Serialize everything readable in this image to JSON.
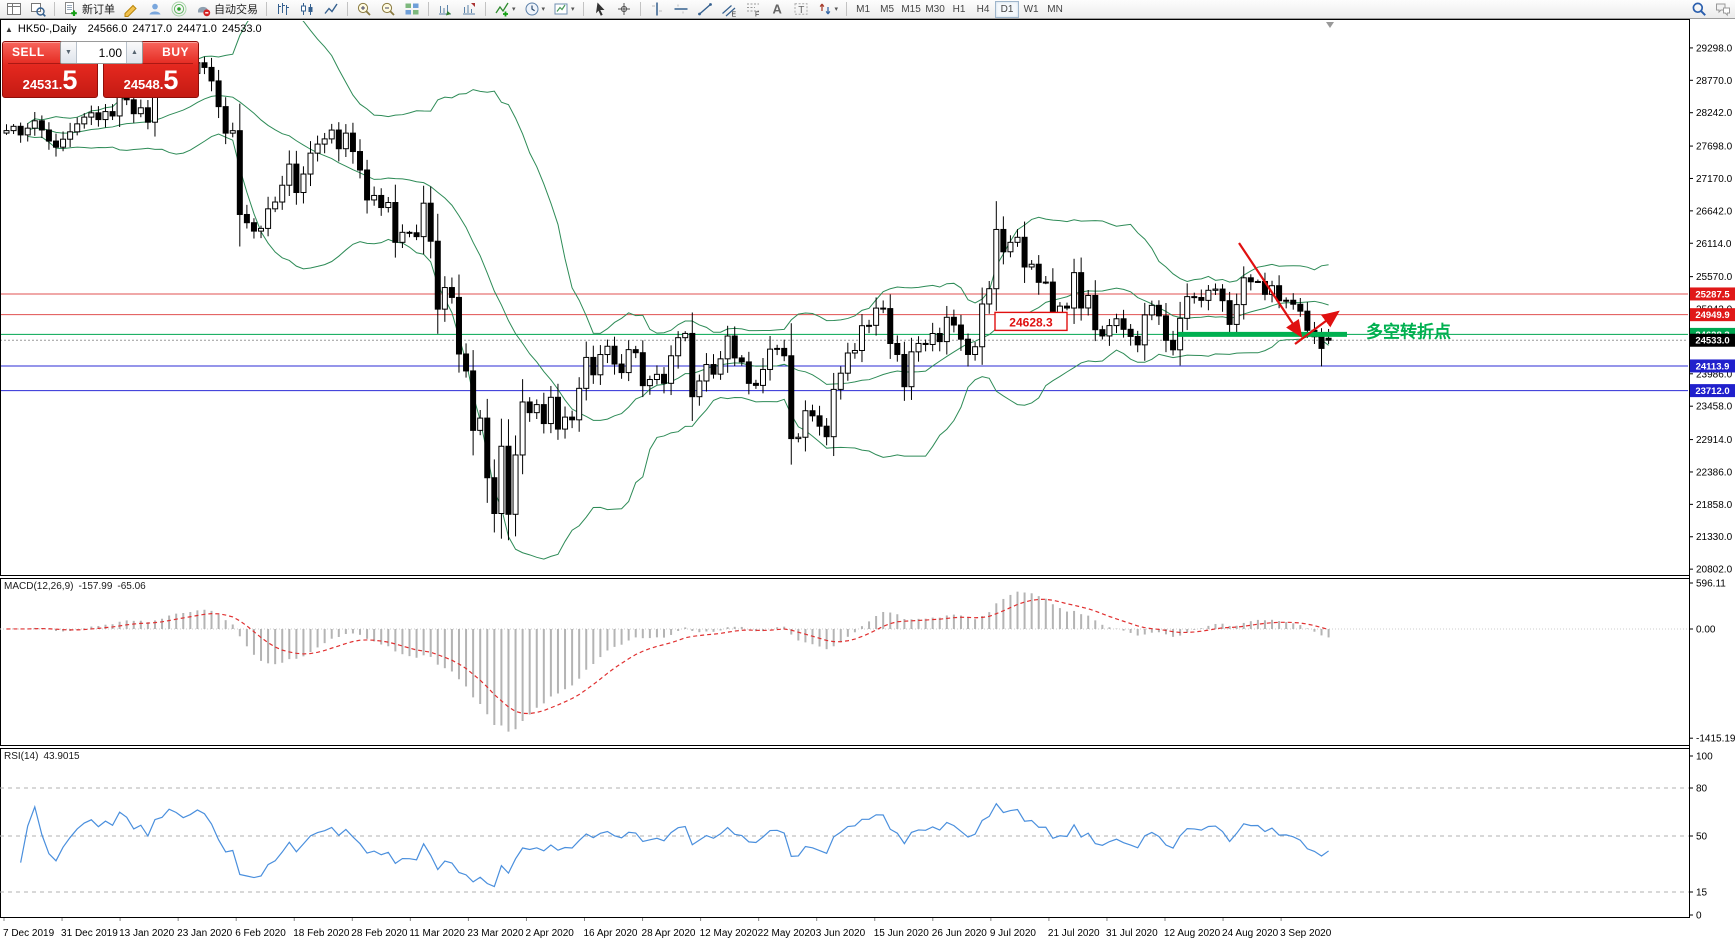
{
  "toolbar": {
    "active_timeframe": "D1",
    "items": [
      {
        "name": "new-chart",
        "type": "icon"
      },
      {
        "name": "chart-profiles",
        "type": "icon"
      },
      {
        "type": "sep"
      },
      {
        "name": "new-order",
        "type": "button",
        "label": "新订单"
      },
      {
        "name": "metaeditor",
        "type": "icon"
      },
      {
        "name": "community",
        "type": "icon"
      },
      {
        "name": "signals",
        "type": "icon"
      },
      {
        "name": "autotrading",
        "type": "button",
        "label": "自动交易"
      },
      {
        "type": "sep"
      },
      {
        "name": "bar-chart",
        "type": "icon"
      },
      {
        "name": "candlestick-chart",
        "type": "icon"
      },
      {
        "name": "line-chart",
        "type": "icon"
      },
      {
        "type": "sep"
      },
      {
        "name": "zoom-in",
        "type": "icon"
      },
      {
        "name": "zoom-out",
        "type": "icon"
      },
      {
        "name": "tile-windows",
        "type": "icon"
      },
      {
        "type": "sep"
      },
      {
        "name": "auto-scroll",
        "type": "icon"
      },
      {
        "name": "chart-shift",
        "type": "icon"
      },
      {
        "type": "sep"
      },
      {
        "name": "indicators",
        "type": "icon",
        "dropdown": true
      },
      {
        "name": "periods",
        "type": "icon",
        "dropdown": true
      },
      {
        "name": "templates",
        "type": "icon",
        "dropdown": true
      },
      {
        "type": "sep"
      },
      {
        "name": "cursor",
        "type": "icon"
      },
      {
        "name": "crosshair",
        "type": "icon"
      },
      {
        "type": "sep"
      },
      {
        "name": "vertical-line",
        "type": "icon"
      },
      {
        "name": "horizontal-line",
        "type": "icon"
      },
      {
        "name": "trendline",
        "type": "icon"
      },
      {
        "name": "equidistant-channel",
        "type": "icon"
      },
      {
        "name": "fibonacci",
        "type": "icon"
      },
      {
        "name": "text",
        "type": "icon"
      },
      {
        "name": "text-label",
        "type": "icon"
      },
      {
        "name": "arrows",
        "type": "icon",
        "dropdown": true
      },
      {
        "type": "sep"
      },
      {
        "name": "tf-m1",
        "type": "tf",
        "label": "M1"
      },
      {
        "name": "tf-m5",
        "type": "tf",
        "label": "M5"
      },
      {
        "name": "tf-m15",
        "type": "tf",
        "label": "M15"
      },
      {
        "name": "tf-m30",
        "type": "tf",
        "label": "M30"
      },
      {
        "name": "tf-h1",
        "type": "tf",
        "label": "H1"
      },
      {
        "name": "tf-h4",
        "type": "tf",
        "label": "H4"
      },
      {
        "name": "tf-d1",
        "type": "tf",
        "label": "D1"
      },
      {
        "name": "tf-w1",
        "type": "tf",
        "label": "W1"
      },
      {
        "name": "tf-mn",
        "type": "tf",
        "label": "MN"
      },
      {
        "type": "spacer"
      },
      {
        "name": "search",
        "type": "icon"
      },
      {
        "name": "chat",
        "type": "icon"
      }
    ]
  },
  "chart_header": {
    "collapse_marker": "▲",
    "symbol": "HK50-,Daily",
    "open": "24566.0",
    "high": "24717.0",
    "low": "24471.0",
    "close": "24533.0"
  },
  "one_click": {
    "sell_label": "SELL",
    "buy_label": "BUY",
    "volume": "1.00",
    "sell_price_small": "24531.",
    "sell_price_big": "5",
    "buy_price_small": "24548.",
    "buy_price_big": "5"
  },
  "price_axis": {
    "ticks": [
      "29298.0",
      "28770.0",
      "28242.0",
      "27698.0",
      "27170.0",
      "26642.0",
      "26114.0",
      "25570.0",
      "25042.0",
      "24514.0",
      "23986.0",
      "23458.0",
      "22914.0",
      "22386.0",
      "21858.0",
      "21330.0",
      "20802.0"
    ]
  },
  "lines": [
    {
      "price": 25287.5,
      "label": "25287.5",
      "line_color": "#e05050",
      "badge_color": "#e01818",
      "style": "solid"
    },
    {
      "price": 24949.9,
      "label": "24949.9",
      "line_color": "#e05050",
      "badge_color": "#e01818",
      "style": "solid"
    },
    {
      "price": 24628.3,
      "label": "24628.3",
      "line_color": "#00a650",
      "badge_color": "#00a650",
      "style": "solid"
    },
    {
      "price": 24533.0,
      "label": "24533.0",
      "line_color": "#9a9a9a",
      "badge_color": "#000000",
      "style": "dot"
    },
    {
      "price": 24113.9,
      "label": "24113.9",
      "line_color": "#2b2bd6",
      "badge_color": "#2020cc",
      "style": "solid"
    },
    {
      "price": 23712.0,
      "label": "23712.0",
      "line_color": "#2b2bd6",
      "badge_color": "#2020cc",
      "style": "solid"
    }
  ],
  "annotations": {
    "price_label": "24628.3",
    "pivot_label": "多空转折点",
    "pivot_color": "#00b050",
    "arrow_color": "#e01010"
  },
  "macd": {
    "label": "MACD(12,26,9)",
    "value_main": "-157.99",
    "value_signal": "-65.06",
    "axis": [
      {
        "text": "596.11",
        "value": 596.11
      },
      {
        "text": "0.00",
        "value": 0
      },
      {
        "text": "-1415.19",
        "value": -1415.19
      }
    ]
  },
  "rsi": {
    "label": "RSI(14)",
    "value": "43.9015",
    "axis": [
      {
        "text": "100",
        "value": 100,
        "line": false
      },
      {
        "text": "80",
        "value": 80,
        "line": true
      },
      {
        "text": "50",
        "value": 50,
        "line": true
      },
      {
        "text": "15",
        "value": 15,
        "line": true
      },
      {
        "text": "0",
        "value": 0,
        "line": false
      }
    ]
  },
  "date_axis": [
    "7 Dec 2019",
    "31 Dec 2019",
    "13 Jan 2020",
    "23 Jan 2020",
    "6 Feb 2020",
    "18 Feb 2020",
    "28 Feb 2020",
    "11 Mar 2020",
    "23 Mar 2020",
    "2 Apr 2020",
    "16 Apr 2020",
    "28 Apr 2020",
    "12 May 2020",
    "22 May 2020",
    "3 Jun 2020",
    "15 Jun 2020",
    "26 Jun 2020",
    "9 Jul 2020",
    "21 Jul 2020",
    "31 Jul 2020",
    "12 Aug 2020",
    "24 Aug 2020",
    "3 Sep 2020"
  ],
  "colors": {
    "bull_candle": "#ffffff",
    "bear_candle": "#000000",
    "candle_outline": "#000000",
    "bollinger": "#2E8B57",
    "macd_histogram": "#b4b4b4",
    "macd_signal": "#e03030",
    "rsi_line": "#4a8fdd",
    "level_dash": "#b0b0b0",
    "buy_sell_button": "#e02a22"
  },
  "chart_data": {
    "type": "candlestick",
    "symbol": "HK50",
    "period": "Daily",
    "visible_price_range": [
      20675,
      29753
    ],
    "last_candle": {
      "open": 24566.0,
      "high": 24717.0,
      "low": 24471.0,
      "close": 24533.0
    },
    "overlays": {
      "bollinger_bands": {
        "period": 20,
        "deviations": 2
      }
    },
    "macd_params": [
      12,
      26,
      9
    ],
    "rsi_params": 14,
    "closes": [
      27950,
      28020,
      27880,
      27990,
      28110,
      27960,
      27780,
      27680,
      27810,
      27930,
      28060,
      28170,
      28240,
      28130,
      28260,
      28189,
      28543,
      28452,
      28226,
      28322,
      28087,
      28561,
      28638,
      28954,
      28885,
      28773,
      28883,
      29056,
      28980,
      28760,
      28341,
      27909,
      27949,
      26583,
      26449,
      26312,
      26356,
      26675,
      26786,
      27060,
      27404,
      26941,
      27242,
      27583,
      27730,
      27815,
      27959,
      27655,
      27909,
      27609,
      27308,
      26820,
      26893,
      26696,
      26778,
      26129,
      26292,
      26285,
      26222,
      26767,
      26147,
      25040,
      25392,
      25231,
      24309,
      24033,
      23064,
      23264,
      22292,
      21709,
      22805,
      21696,
      22663,
      23527,
      23353,
      23484,
      23175,
      23603,
      23085,
      23280,
      23236,
      23749,
      24253,
      23970,
      24300,
      24435,
      24145,
      24006,
      24380,
      24330,
      23793,
      23893,
      23977,
      23831,
      24280,
      24575,
      24644,
      23613,
      23869,
      24137,
      23980,
      24230,
      24602,
      24245,
      24180,
      23830,
      23797,
      24057,
      24388,
      24400,
      24280,
      22930,
      22952,
      23384,
      23301,
      23132,
      22961,
      23732,
      23996,
      24325,
      24366,
      24770,
      24776,
      25057,
      25049,
      24480,
      24301,
      23776,
      24344,
      24481,
      24464,
      24643,
      24511,
      24907,
      24781,
      24550,
      24301,
      24427,
      25124,
      25373,
      26339,
      25975,
      26129,
      26211,
      25727,
      25772,
      25477,
      25481,
      24971,
      25089,
      25058,
      25635,
      25059,
      25263,
      24705,
      24603,
      24772,
      24883,
      24711,
      24595,
      24458,
      24946,
      25102,
      24930,
      24532,
      24377,
      24890,
      25244,
      25230,
      25183,
      25347,
      25367,
      25178,
      24791,
      25114,
      25551,
      25486,
      25491,
      25281,
      25422,
      25177,
      25185,
      25120,
      25007,
      24695,
      24590,
      24400,
      24533
    ],
    "wick_overrides": {
      "69": {
        "low": 21400
      },
      "140": {
        "high": 26800
      },
      "186": {
        "low": 24105
      }
    }
  }
}
